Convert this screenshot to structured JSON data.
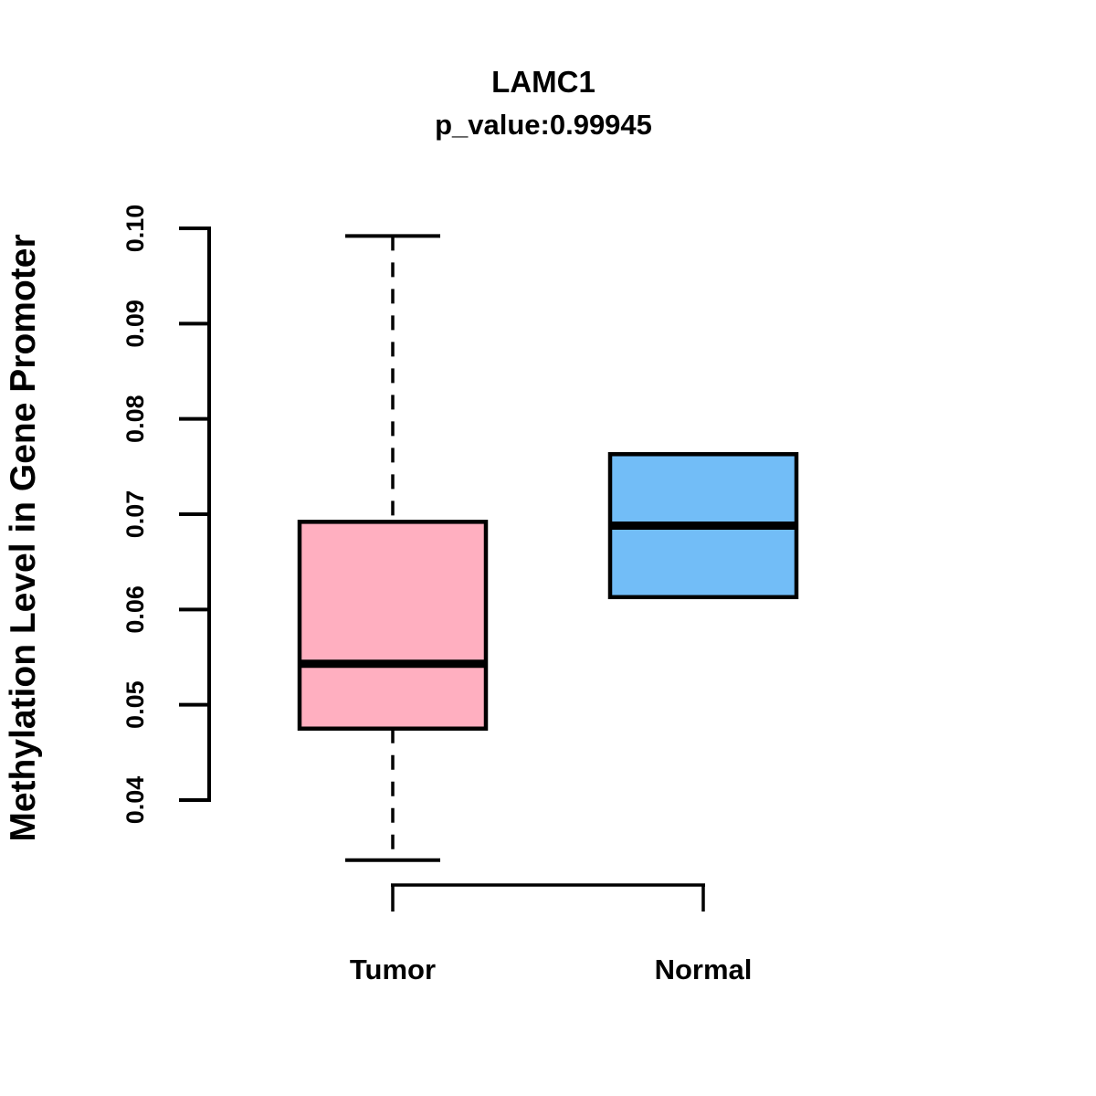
{
  "chart_data": {
    "type": "boxplot",
    "title": "LAMC1",
    "subtitle": "p_value:0.99945",
    "ylabel": "Methylation Level in Gene Promoter",
    "categories": [
      "Tumor",
      "Normal"
    ],
    "yticks": [
      0.04,
      0.05,
      0.06,
      0.07,
      0.08,
      0.09,
      0.1
    ],
    "axis_range": [
      0.04,
      0.1
    ],
    "grid": false,
    "legend": "none",
    "groups": [
      {
        "label": "Tumor",
        "fill": "#FFAFC0",
        "whisker_low": 0.0337,
        "q1": 0.0475,
        "median": 0.0543,
        "q3": 0.0692,
        "whisker_high": 0.0992
      },
      {
        "label": "Normal",
        "fill": "#72BDF7",
        "whisker_low": 0.0613,
        "q1": 0.0613,
        "median": 0.0688,
        "q3": 0.0763,
        "whisker_high": 0.0763
      }
    ]
  }
}
